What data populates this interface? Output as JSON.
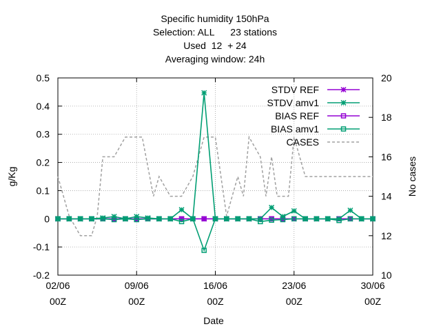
{
  "chart_data": {
    "type": "line",
    "title_lines": [
      "Specific humidity 150hPa",
      "Selection: ALL      23 stations",
      "Used  12  + 24",
      "Averaging window: 24h"
    ],
    "xlabel": "Date",
    "ylabel": "g/Kg",
    "y2label": "No cases",
    "xlim": [
      0,
      28
    ],
    "ylim": [
      -0.2,
      0.5
    ],
    "y2lim": [
      10,
      20
    ],
    "grid": true,
    "legend_position": "top-right",
    "x_ticks": [
      {
        "value": 0,
        "line1": "02/06",
        "line2": "00Z"
      },
      {
        "value": 7,
        "line1": "09/06",
        "line2": "00Z"
      },
      {
        "value": 14,
        "line1": "16/06",
        "line2": "00Z"
      },
      {
        "value": 21,
        "line1": "23/06",
        "line2": "00Z"
      },
      {
        "value": 28,
        "line1": "30/06",
        "line2": "00Z"
      }
    ],
    "y_ticks": [
      {
        "value": -0.2,
        "label": "-0.2"
      },
      {
        "value": -0.1,
        "label": "-0.1"
      },
      {
        "value": 0,
        "label": "0"
      },
      {
        "value": 0.1,
        "label": "0.1"
      },
      {
        "value": 0.2,
        "label": "0.2"
      },
      {
        "value": 0.3,
        "label": "0.3"
      },
      {
        "value": 0.4,
        "label": "0.4"
      },
      {
        "value": 0.5,
        "label": "0.5"
      }
    ],
    "y2_ticks": [
      {
        "value": 10,
        "label": "10"
      },
      {
        "value": 12,
        "label": "12"
      },
      {
        "value": 14,
        "label": "14"
      },
      {
        "value": 16,
        "label": "16"
      },
      {
        "value": 18,
        "label": "18"
      },
      {
        "value": 20,
        "label": "20"
      }
    ],
    "x": [
      0,
      1,
      2,
      3,
      4,
      5,
      6,
      7,
      8,
      9,
      10,
      11,
      12,
      13,
      14,
      15,
      16,
      17,
      18,
      19,
      20,
      21,
      22,
      23,
      24,
      25,
      26,
      27,
      28
    ],
    "series": [
      {
        "name": "STDV REF",
        "color": "#9400d3",
        "marker": "star",
        "axis": "y1",
        "style": "solid",
        "values": [
          0,
          0,
          0,
          0,
          0,
          0,
          0,
          0,
          0,
          0,
          0,
          0,
          0,
          0,
          0,
          0,
          0,
          0,
          0,
          0,
          0,
          0,
          0,
          0,
          0,
          0,
          0,
          0,
          0
        ]
      },
      {
        "name": "STDV amv1",
        "color": "#009e73",
        "marker": "star",
        "axis": "y1",
        "style": "solid",
        "values": [
          0,
          0,
          0,
          0,
          0.003,
          0.008,
          0,
          0.008,
          0.003,
          0,
          0,
          0.032,
          0,
          0.447,
          0,
          0,
          0,
          0,
          0,
          0.04,
          0.008,
          0.028,
          0,
          0,
          0,
          0,
          0.03,
          0,
          0
        ]
      },
      {
        "name": "BIAS REF",
        "color": "#9400d3",
        "marker": "square",
        "axis": "y1",
        "style": "solid",
        "values": [
          0,
          0,
          0,
          0,
          0,
          0,
          0,
          0,
          0,
          0,
          0,
          0,
          0,
          0,
          0,
          0,
          0,
          0,
          0,
          0,
          0,
          0,
          0,
          0,
          0,
          0,
          0,
          0,
          0
        ]
      },
      {
        "name": "BIAS amv1",
        "color": "#009e73",
        "marker": "square",
        "axis": "y1",
        "style": "solid",
        "values": [
          0,
          0,
          0,
          0,
          0,
          -0.003,
          0,
          -0.003,
          0,
          0,
          0,
          -0.01,
          0,
          -0.112,
          0,
          0,
          0,
          0,
          -0.01,
          -0.005,
          -0.003,
          0,
          0,
          0,
          0,
          -0.006,
          0,
          0,
          0
        ]
      },
      {
        "name": "CASES",
        "color": "#a0a0a0",
        "marker": "none",
        "axis": "y2",
        "style": "dashed",
        "x": [
          0,
          0.5,
          1,
          2,
          2.5,
          3,
          3.5,
          4,
          5,
          5.5,
          6,
          7,
          7.5,
          8.5,
          9,
          9.5,
          10,
          10.5,
          11,
          11.5,
          12,
          12.5,
          13,
          14,
          14.5,
          15,
          15.5,
          16,
          16.5,
          17,
          17.5,
          18,
          18.5,
          19,
          19.5,
          20,
          20.5,
          21,
          21.5,
          22,
          22.5,
          23,
          23.5,
          24,
          24.5,
          25,
          26,
          27,
          28
        ],
        "values": [
          15,
          14,
          13,
          12,
          12,
          12,
          13,
          16,
          16,
          16.5,
          17,
          17,
          17,
          14,
          15,
          14.5,
          14,
          14,
          14,
          14.5,
          15,
          16,
          17,
          17,
          15,
          13,
          14,
          15,
          14,
          17,
          16.5,
          16,
          14,
          16,
          14,
          14,
          14,
          17,
          16,
          15,
          15,
          15,
          15,
          15,
          15,
          15,
          15,
          15,
          15
        ]
      }
    ]
  }
}
